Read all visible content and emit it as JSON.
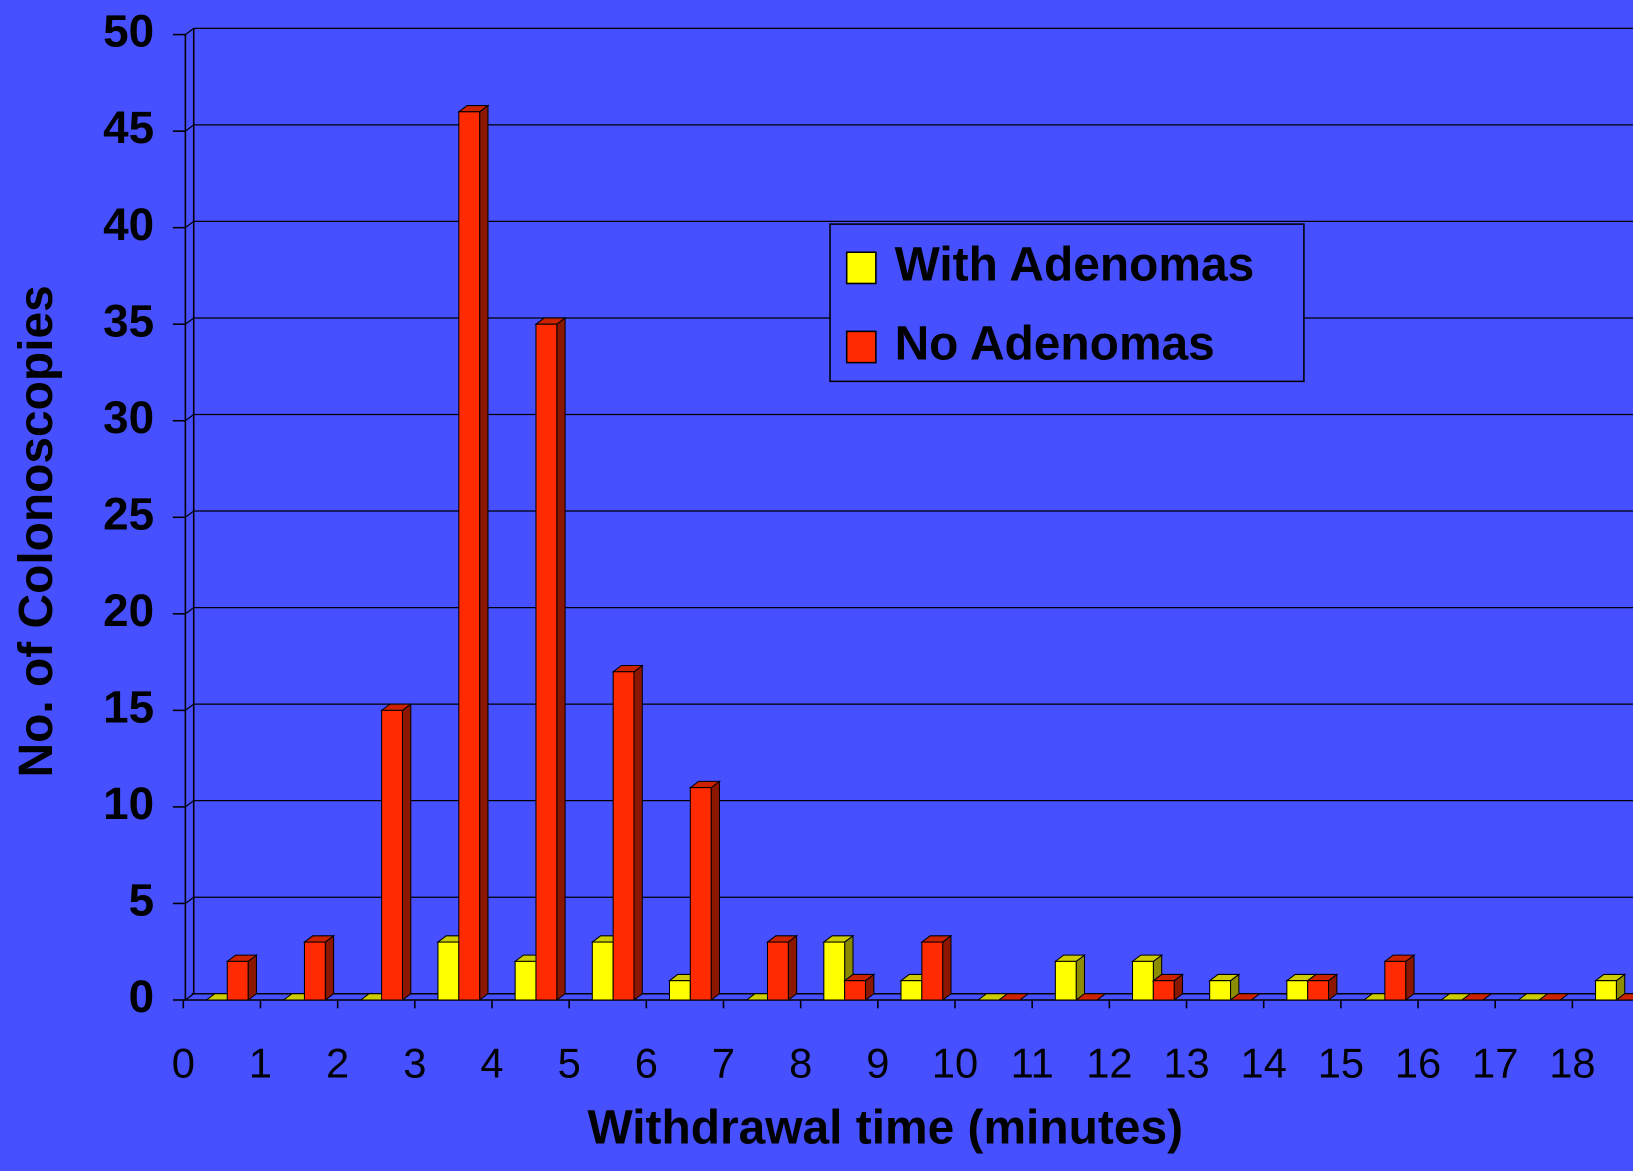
{
  "chart_data": {
    "type": "bar",
    "xlabel": "Withdrawal time (minutes)",
    "ylabel": "No. of Colonoscopies",
    "categories": [
      "0",
      "1",
      "2",
      "3",
      "4",
      "5",
      "6",
      "7",
      "8",
      "9",
      "10",
      "11",
      "12",
      "13",
      "14",
      "15",
      "16",
      "17",
      "18"
    ],
    "series": [
      {
        "name": "With Adenomas",
        "color": "#ffff00",
        "values": [
          0,
          0,
          0,
          3,
          2,
          3,
          1,
          0,
          3,
          1,
          0,
          2,
          2,
          1,
          1,
          0,
          0,
          0,
          1
        ]
      },
      {
        "name": "No Adenomas",
        "color": "#ff2a00",
        "values": [
          2,
          3,
          15,
          46,
          35,
          17,
          11,
          3,
          1,
          3,
          0,
          0,
          1,
          0,
          1,
          2,
          0,
          0,
          0
        ]
      }
    ],
    "ylim": [
      0,
      50
    ],
    "yticks": [
      0,
      5,
      10,
      15,
      20,
      25,
      30,
      35,
      40,
      45,
      50
    ],
    "grid": true,
    "legend": "upper center"
  }
}
